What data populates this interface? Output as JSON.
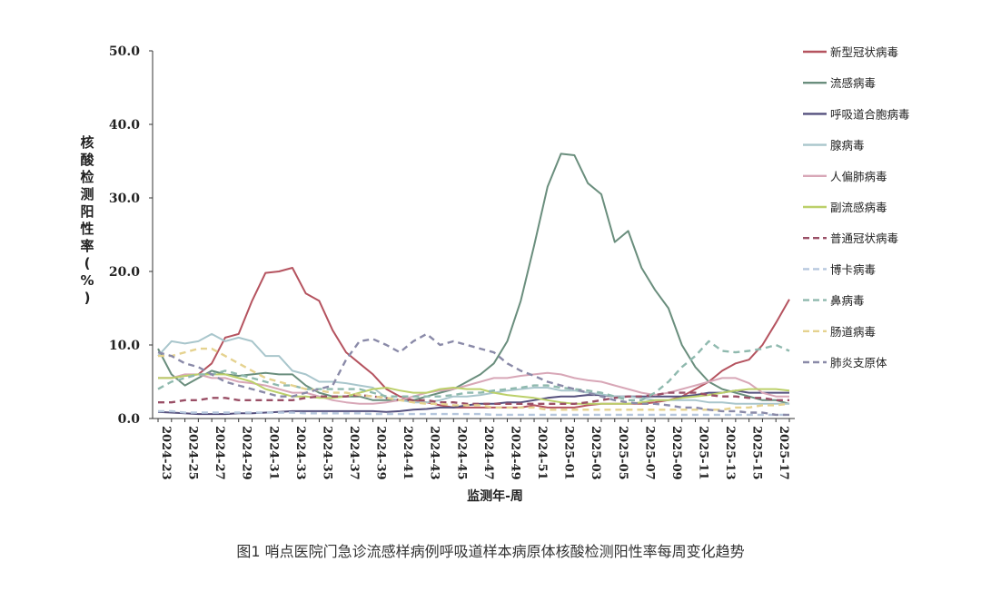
{
  "figure": {
    "caption": "图1   哨点医院门急诊流感样病例呼吸道样本病原体核酸检测阳性率每周变化趋势"
  },
  "chart_data": {
    "type": "line",
    "ylabel": "核酸检测阳性率（%）",
    "xlabel": "监测年-周",
    "ylim": [
      0,
      50
    ],
    "yticks": [
      "0.0",
      "10.0",
      "20.0",
      "30.0",
      "40.0",
      "50.0"
    ],
    "xticklabels": [
      "2024-23",
      "2024-25",
      "2024-27",
      "2024-29",
      "2024-31",
      "2024-33",
      "2024-35",
      "2024-37",
      "2024-39",
      "2024-41",
      "2024-43",
      "2024-45",
      "2024-47",
      "2024-49",
      "2024-51",
      "2025-01",
      "2025-03",
      "2025-05",
      "2025-07",
      "2025-09",
      "2025-11",
      "2025-13",
      "2025-15",
      "2025-17"
    ],
    "x": [
      "2024-23",
      "2024-24",
      "2024-25",
      "2024-26",
      "2024-27",
      "2024-28",
      "2024-29",
      "2024-30",
      "2024-31",
      "2024-32",
      "2024-33",
      "2024-34",
      "2024-35",
      "2024-36",
      "2024-37",
      "2024-38",
      "2024-39",
      "2024-40",
      "2024-41",
      "2024-42",
      "2024-43",
      "2024-44",
      "2024-45",
      "2024-46",
      "2024-47",
      "2024-48",
      "2024-49",
      "2024-50",
      "2024-51",
      "2024-52",
      "2025-01",
      "2025-02",
      "2025-03",
      "2025-04",
      "2025-05",
      "2025-06",
      "2025-07",
      "2025-08",
      "2025-09",
      "2025-10",
      "2025-11",
      "2025-12",
      "2025-13",
      "2025-14",
      "2025-15",
      "2025-16",
      "2025-17",
      "2025-18"
    ],
    "grid": false,
    "legend_position": "right",
    "series": [
      {
        "name": "新型冠状病毒",
        "color": "#b5535f",
        "dash": "solid",
        "values": [
          5.5,
          5.5,
          5.8,
          6.0,
          7.5,
          11.0,
          11.5,
          16.0,
          19.8,
          20.0,
          20.5,
          17.0,
          16.0,
          12.0,
          9.0,
          7.5,
          6.0,
          4.0,
          3.0,
          2.5,
          2.2,
          1.8,
          1.5,
          1.5,
          1.5,
          1.5,
          1.5,
          1.5,
          1.8,
          1.5,
          1.5,
          1.5,
          1.8,
          2.0,
          2.0,
          2.0,
          2.0,
          2.2,
          2.5,
          3.0,
          4.0,
          5.0,
          6.5,
          7.5,
          8.0,
          10.0,
          13.0,
          16.2
        ]
      },
      {
        "name": "流感病毒",
        "color": "#6a8e7d",
        "dash": "solid",
        "values": [
          9.5,
          6.0,
          4.5,
          5.5,
          6.5,
          6.0,
          5.8,
          6.0,
          6.2,
          6.0,
          6.0,
          4.5,
          3.5,
          3.0,
          3.0,
          3.0,
          2.5,
          2.5,
          2.5,
          2.5,
          3.0,
          3.5,
          4.0,
          5.0,
          6.0,
          7.5,
          10.5,
          16.0,
          23.5,
          31.5,
          36.0,
          35.8,
          32.0,
          30.5,
          24.0,
          25.5,
          20.5,
          17.5,
          15.0,
          10.0,
          7.0,
          5.0,
          4.0,
          3.5,
          3.0,
          2.5,
          2.5,
          2.0
        ]
      },
      {
        "name": "呼吸道合胞病毒",
        "color": "#55507e",
        "dash": "solid",
        "values": [
          0.9,
          0.8,
          0.7,
          0.6,
          0.6,
          0.6,
          0.7,
          0.7,
          0.8,
          0.9,
          1.0,
          1.0,
          1.0,
          1.0,
          1.0,
          1.0,
          1.0,
          0.9,
          1.0,
          1.2,
          1.3,
          1.5,
          1.5,
          1.8,
          2.0,
          2.0,
          2.2,
          2.2,
          2.5,
          2.8,
          3.0,
          3.0,
          3.2,
          3.2,
          3.0,
          3.0,
          3.0,
          3.0,
          3.0,
          3.0,
          3.2,
          3.5,
          3.5,
          3.8,
          3.5,
          3.5,
          3.5,
          3.5
        ]
      },
      {
        "name": "腺病毒",
        "color": "#a9c6cc",
        "dash": "solid",
        "values": [
          8.5,
          10.5,
          10.2,
          10.5,
          11.5,
          10.5,
          11.0,
          10.5,
          8.5,
          8.5,
          6.5,
          6.0,
          5.0,
          5.0,
          4.8,
          4.5,
          4.2,
          2.8,
          2.5,
          2.2,
          2.2,
          2.5,
          3.0,
          3.0,
          3.2,
          3.5,
          3.8,
          4.0,
          4.2,
          4.2,
          3.8,
          3.8,
          3.5,
          3.3,
          3.0,
          3.0,
          2.8,
          2.5,
          2.5,
          2.5,
          2.5,
          2.2,
          2.2,
          2.0,
          2.0,
          2.0,
          2.0,
          2.0
        ]
      },
      {
        "name": "人偏肺病毒",
        "color": "#d8a7b7",
        "dash": "solid",
        "values": [
          5.5,
          5.5,
          6.0,
          6.0,
          5.5,
          5.5,
          5.0,
          4.8,
          4.5,
          4.0,
          3.5,
          3.5,
          3.0,
          2.5,
          2.2,
          2.0,
          2.0,
          2.2,
          2.5,
          3.0,
          3.5,
          3.8,
          4.0,
          4.5,
          5.0,
          5.5,
          5.5,
          5.8,
          6.0,
          6.2,
          6.0,
          5.5,
          5.2,
          5.0,
          4.5,
          4.0,
          3.5,
          3.2,
          3.5,
          4.0,
          4.5,
          5.0,
          5.5,
          5.5,
          4.8,
          3.5,
          3.0,
          3.0
        ]
      },
      {
        "name": "副流感病毒",
        "color": "#bcd06a",
        "dash": "solid",
        "values": [
          5.5,
          5.5,
          5.8,
          6.0,
          6.0,
          6.0,
          5.5,
          5.0,
          4.0,
          3.5,
          3.0,
          3.0,
          2.8,
          2.8,
          3.0,
          3.5,
          4.0,
          4.2,
          3.8,
          3.5,
          3.5,
          4.0,
          4.2,
          4.0,
          4.0,
          3.5,
          3.2,
          3.0,
          2.8,
          2.5,
          2.2,
          2.0,
          2.0,
          2.0,
          2.0,
          2.0,
          2.2,
          2.5,
          2.5,
          2.8,
          3.0,
          3.2,
          3.5,
          3.8,
          4.0,
          4.0,
          4.0,
          3.8
        ]
      },
      {
        "name": "普通冠状病毒",
        "color": "#9a4f66",
        "dash": "dash",
        "values": [
          2.2,
          2.2,
          2.5,
          2.5,
          2.8,
          2.8,
          2.5,
          2.5,
          2.5,
          2.5,
          2.5,
          2.8,
          3.0,
          3.0,
          3.0,
          3.2,
          3.0,
          2.8,
          2.5,
          2.5,
          2.5,
          2.2,
          2.2,
          2.0,
          2.0,
          2.0,
          2.0,
          2.0,
          2.0,
          2.0,
          2.0,
          2.0,
          2.2,
          2.5,
          2.8,
          3.0,
          3.0,
          3.2,
          3.5,
          3.5,
          3.5,
          3.2,
          3.0,
          3.0,
          2.8,
          2.8,
          2.5,
          2.5
        ]
      },
      {
        "name": "博卡病毒",
        "color": "#b6c7dd",
        "dash": "dash",
        "values": [
          1.0,
          1.0,
          0.8,
          0.8,
          0.8,
          0.8,
          0.8,
          0.8,
          0.8,
          0.8,
          0.8,
          0.7,
          0.7,
          0.7,
          0.7,
          0.7,
          0.6,
          0.6,
          0.6,
          0.6,
          0.6,
          0.6,
          0.6,
          0.6,
          0.6,
          0.5,
          0.5,
          0.5,
          0.5,
          0.5,
          0.5,
          0.5,
          0.5,
          0.5,
          0.5,
          0.5,
          0.5,
          0.5,
          0.5,
          0.5,
          0.5,
          0.5,
          0.5,
          0.5,
          0.5,
          0.5,
          0.5,
          0.5
        ]
      },
      {
        "name": "鼻病毒",
        "color": "#8fb9ae",
        "dash": "dash",
        "values": [
          4.0,
          5.0,
          5.5,
          6.0,
          6.0,
          6.5,
          6.0,
          5.5,
          5.0,
          4.5,
          4.5,
          4.0,
          4.0,
          4.0,
          4.0,
          4.0,
          3.5,
          3.0,
          3.0,
          3.0,
          3.0,
          3.0,
          3.2,
          3.5,
          3.5,
          3.8,
          4.0,
          4.2,
          4.5,
          4.5,
          4.2,
          4.0,
          3.8,
          3.5,
          3.0,
          2.5,
          2.5,
          3.5,
          5.0,
          7.0,
          8.5,
          10.5,
          9.2,
          9.0,
          9.2,
          9.5,
          10.0,
          9.2
        ]
      },
      {
        "name": "肠道病毒",
        "color": "#e5d28f",
        "dash": "dash",
        "values": [
          8.5,
          8.5,
          9.0,
          9.5,
          9.5,
          8.5,
          7.5,
          6.5,
          5.5,
          5.0,
          4.5,
          4.0,
          3.8,
          3.5,
          3.5,
          3.2,
          3.0,
          2.8,
          2.5,
          2.2,
          2.0,
          2.0,
          1.8,
          1.8,
          1.8,
          1.5,
          1.5,
          1.5,
          1.5,
          1.2,
          1.2,
          1.2,
          1.2,
          1.2,
          1.2,
          1.2,
          1.2,
          1.2,
          1.2,
          1.2,
          1.2,
          1.2,
          1.2,
          1.5,
          1.5,
          1.8,
          1.8,
          2.0
        ]
      },
      {
        "name": "肺炎支原体",
        "color": "#8a8aa8",
        "dash": "dash",
        "values": [
          9.0,
          8.5,
          7.5,
          7.0,
          6.0,
          5.0,
          4.5,
          4.0,
          3.5,
          3.0,
          3.0,
          3.5,
          4.0,
          4.5,
          8.0,
          10.5,
          10.8,
          10.0,
          9.0,
          10.5,
          11.5,
          10.0,
          10.5,
          10.0,
          9.5,
          9.0,
          7.5,
          6.5,
          5.8,
          5.0,
          4.5,
          4.0,
          3.5,
          3.0,
          2.5,
          2.2,
          2.0,
          2.0,
          1.8,
          1.5,
          1.5,
          1.2,
          1.0,
          1.0,
          0.8,
          0.8,
          0.5,
          0.5
        ]
      }
    ]
  }
}
